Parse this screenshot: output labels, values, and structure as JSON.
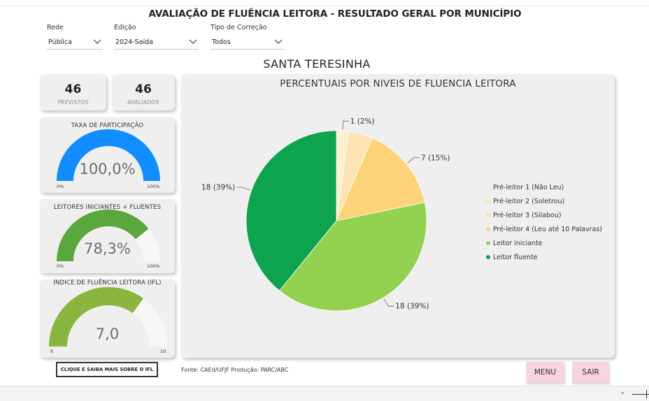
{
  "header": {
    "title": "AVALIAÇÃO DE FLUÊNCIA LEITORA -  RESULTADO GERAL POR MUNICÍPIO"
  },
  "filters": [
    {
      "label": "Rede",
      "value": "Pública"
    },
    {
      "label": "Edição",
      "value": "2024-Saída"
    },
    {
      "label": "Tipo de Correção",
      "value": "Todos"
    }
  ],
  "municipality": "SANTA TERESINHA",
  "kpis": {
    "previstos": {
      "value": "46",
      "label": "PREVISTOS"
    },
    "avaliados": {
      "value": "46",
      "label": "AVALIADOS"
    }
  },
  "gauges": [
    {
      "title": "TAXA DE PARTICIPAÇÃO",
      "value_text": "100,0%",
      "value": 100.0,
      "min_label": "0%",
      "max_label": "100%",
      "min": 0,
      "max": 100,
      "color": "#118dff"
    },
    {
      "title": "LEITORES INICIANTES + FLUENTES",
      "value_text": "78,3%",
      "value": 78.3,
      "min_label": "0%",
      "max_label": "100%",
      "min": 0,
      "max": 100,
      "color": "#5aa83d"
    },
    {
      "title": "ÍNDICE DE FLUÊNCIA LEITORA (IFL)",
      "value_text": "7,0",
      "value": 7.0,
      "min_label": "0",
      "max_label": "10",
      "min": 0,
      "max": 10,
      "color": "#8ab63f"
    }
  ],
  "chart_data": {
    "type": "pie",
    "title": "PERCENTUAIS POR NIVEIS DE FLUENCIA LEITORA",
    "categories": [
      "Pré-leitor 1 (Não Leu)",
      "Pré-leitor 2 (Soletrou)",
      "Pré-leitor 3 (Silabou)",
      "Pré-leitor 4 (Leu até 10 Palavras)",
      "Leitor iniciante",
      "Leitor fluente"
    ],
    "values": [
      1,
      2,
      0,
      7,
      18,
      18
    ],
    "colors": [
      "#fbf1d0",
      "#fce5b2",
      "#fde09a",
      "#fdd37a",
      "#93d150",
      "#0ea34e"
    ],
    "data_labels": [
      "1 (2%)",
      "",
      "",
      "7 (15%)",
      "18 (39%)",
      "18 (39%)"
    ],
    "legend_position": "right"
  },
  "footer": {
    "ifl_button": "CLIQUE E SAIBA MAIS SOBRE O IFL",
    "source": "Fonte: CAEd/UFJF  Produção: PARC/ABC",
    "menu_button": "MENU",
    "sair_button": "SAIR"
  },
  "statusbar": {
    "zoom_minus": "-"
  }
}
